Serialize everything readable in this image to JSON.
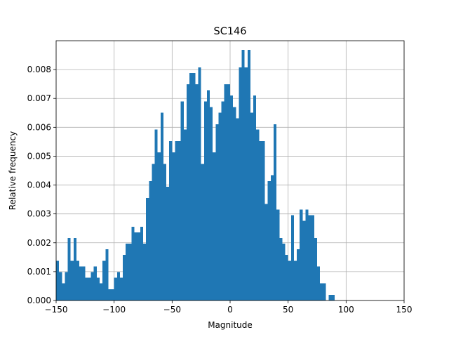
{
  "chart_data": {
    "type": "bar",
    "title": "SC146",
    "xlabel": "Magnitude",
    "ylabel": "Relative frequency",
    "xlim": [
      -150,
      150
    ],
    "ylim": [
      0,
      0.009
    ],
    "xticks": [
      "-150",
      "-100",
      "-50",
      "0",
      "50",
      "100",
      "150"
    ],
    "yticks": [
      "0.000",
      "0.001",
      "0.002",
      "0.003",
      "0.004",
      "0.005",
      "0.006",
      "0.007",
      "0.008"
    ],
    "grid": true,
    "bin_start": -150,
    "bin_width": 2.5,
    "values": [
      0.00138,
      0.00099,
      0.00059,
      0.00099,
      0.00217,
      0.00138,
      0.00217,
      0.00138,
      0.00118,
      0.00118,
      0.00079,
      0.00079,
      0.00099,
      0.00118,
      0.00079,
      0.00059,
      0.00138,
      0.00178,
      0.00039,
      0.00039,
      0.00079,
      0.00099,
      0.00079,
      0.00158,
      0.00197,
      0.00197,
      0.00256,
      0.00236,
      0.00236,
      0.00256,
      0.00197,
      0.00355,
      0.00414,
      0.00473,
      0.00592,
      0.00513,
      0.00651,
      0.00473,
      0.00394,
      0.00552,
      0.00513,
      0.00552,
      0.00552,
      0.0069,
      0.00592,
      0.00749,
      0.00788,
      0.00788,
      0.00749,
      0.00808,
      0.00473,
      0.0069,
      0.00729,
      0.0067,
      0.00513,
      0.00611,
      0.00651,
      0.0069,
      0.00749,
      0.00749,
      0.0071,
      0.0067,
      0.00631,
      0.00808,
      0.00868,
      0.00808,
      0.00868,
      0.00651,
      0.0071,
      0.00592,
      0.00552,
      0.00552,
      0.00335,
      0.00414,
      0.00434,
      0.00611,
      0.00315,
      0.00217,
      0.00197,
      0.00158,
      0.00138,
      0.00296,
      0.00138,
      0.00178,
      0.00315,
      0.00276,
      0.00315,
      0.00296,
      0.00296,
      0.00217,
      0.00118,
      0.00059,
      0.00059,
      0.0,
      0.0002,
      0.0002,
      0.0,
      0.0,
      0.0,
      0.0,
      0.0,
      0.0,
      0.0,
      0.0,
      0.0,
      0.0,
      0.0,
      0.0,
      0.0,
      0.0,
      0.0,
      0.0,
      0.0,
      0.0,
      0.0,
      0.0,
      0.0,
      0.0,
      0.0,
      0.0
    ],
    "colors": {
      "bar": "#1f77b4",
      "grid": "#b0b0b0",
      "axes": "#000000"
    }
  }
}
